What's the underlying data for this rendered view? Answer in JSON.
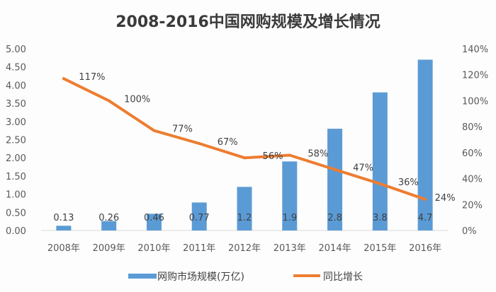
{
  "chart_data": {
    "type": "bar",
    "title": "2008-2016中国网购规模及增长情况",
    "categories": [
      "2008年",
      "2009年",
      "2010年",
      "2011年",
      "2012年",
      "2013年",
      "2014年",
      "2015年",
      "2016年"
    ],
    "series": [
      {
        "name": "网购市场规模(万亿)",
        "type": "bar",
        "axis": "left",
        "color": "#5b9bd5",
        "values": [
          0.13,
          0.26,
          0.46,
          0.77,
          1.2,
          1.9,
          2.8,
          3.8,
          4.7
        ],
        "labels": [
          "0.13",
          "0.26",
          "0.46",
          "0.77",
          "1.2",
          "1.9",
          "2.8",
          "3.8",
          "4.7"
        ]
      },
      {
        "name": "同比增长",
        "type": "line",
        "axis": "right",
        "color": "#ed7d31",
        "values": [
          117,
          100,
          77,
          67,
          56,
          58,
          47,
          36,
          24
        ],
        "labels": [
          "117%",
          "100%",
          "77%",
          "67%",
          "56%",
          "58%",
          "47%",
          "36%",
          "24%"
        ]
      }
    ],
    "y_left": {
      "lim": [
        0,
        5
      ],
      "ticks": [
        "0.00",
        "0.50",
        "1.00",
        "1.50",
        "2.00",
        "2.50",
        "3.00",
        "3.50",
        "4.00",
        "4.50",
        "5.00"
      ]
    },
    "y_right": {
      "lim": [
        0,
        140
      ],
      "ticks": [
        "0%",
        "20%",
        "40%",
        "60%",
        "80%",
        "100%",
        "120%",
        "140%"
      ]
    },
    "xlabel": "",
    "ylabel": "",
    "grid": false,
    "legend": "bottom"
  }
}
